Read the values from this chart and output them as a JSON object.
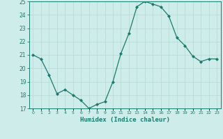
{
  "x": [
    0,
    1,
    2,
    3,
    4,
    5,
    6,
    7,
    8,
    9,
    10,
    11,
    12,
    13,
    14,
    15,
    16,
    17,
    18,
    19,
    20,
    21,
    22,
    23
  ],
  "y": [
    21.0,
    20.7,
    19.5,
    18.1,
    18.4,
    18.0,
    17.6,
    17.0,
    17.3,
    17.5,
    19.0,
    21.1,
    22.6,
    24.6,
    25.0,
    24.8,
    24.6,
    23.9,
    22.3,
    21.7,
    20.9,
    20.5,
    20.7,
    20.7
  ],
  "line_color": "#1a7a6e",
  "marker_color": "#1a7a6e",
  "bg_color": "#ceecea",
  "grid_color": "#b8dcd9",
  "axis_color": "#1a7a6e",
  "tick_color": "#1a7a6e",
  "xlabel": "Humidex (Indice chaleur)",
  "ylim": [
    17,
    25
  ],
  "xlim": [
    -0.5,
    23.5
  ],
  "yticks": [
    17,
    18,
    19,
    20,
    21,
    22,
    23,
    24,
    25
  ],
  "xtick_labels": [
    "0",
    "1",
    "2",
    "3",
    "4",
    "5",
    "6",
    "7",
    "8",
    "9",
    "10",
    "11",
    "12",
    "13",
    "14",
    "15",
    "16",
    "17",
    "18",
    "19",
    "20",
    "21",
    "22",
    "23"
  ]
}
